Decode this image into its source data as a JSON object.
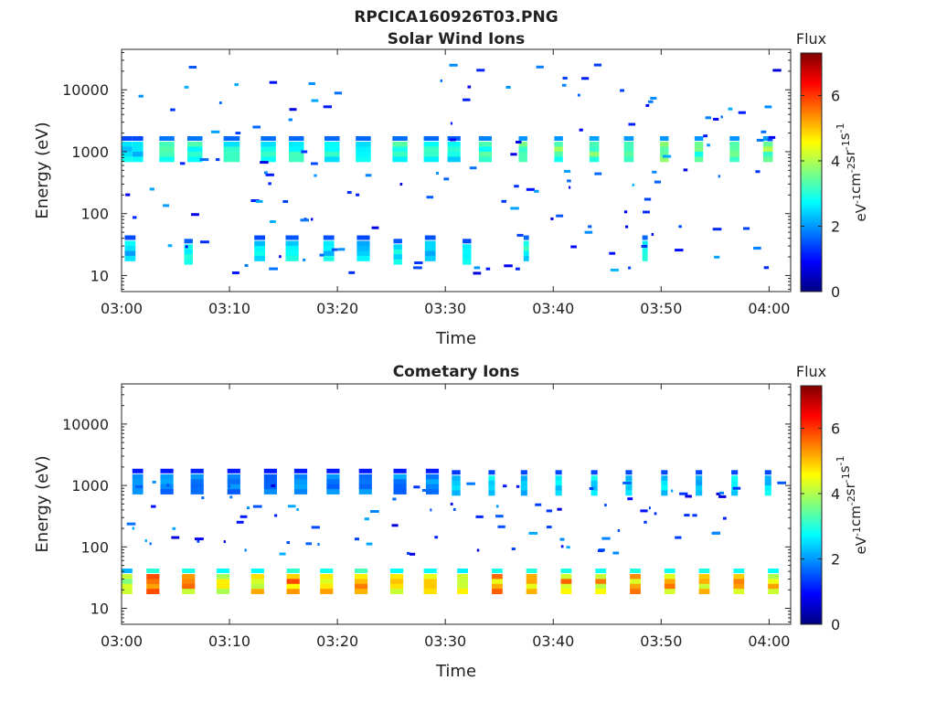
{
  "figure_title": "RPCICA160926T03.PNG",
  "colors": {
    "colormap": [
      "#00007f",
      "#0000ff",
      "#007fff",
      "#00ffff",
      "#7fff7f",
      "#ffff00",
      "#ff7f00",
      "#ff0000",
      "#7f0000"
    ]
  },
  "chart_data": [
    {
      "type": "heatmap",
      "title": "Solar Wind Ions",
      "xlabel": "Time",
      "ylabel": "Energy (eV)",
      "y_scale": "log",
      "xlim": [
        "03:00",
        "04:02"
      ],
      "ylim": [
        5.5,
        45000
      ],
      "xticks": [
        "03:00",
        "03:10",
        "03:20",
        "03:30",
        "03:40",
        "03:50",
        "04:00"
      ],
      "yticks": [
        {
          "value": 10,
          "label": "10"
        },
        {
          "value": 100,
          "label": "100"
        },
        {
          "value": 1000,
          "label": "1000"
        },
        {
          "value": 10000,
          "label": "10000"
        }
      ],
      "colorbar": {
        "title": "Flux",
        "label_parts": [
          "eV",
          "-1",
          "cm",
          "-2",
          "sr",
          "-1",
          "s",
          "-1"
        ],
        "range": [
          0,
          7.3
        ],
        "ticks": [
          {
            "value": 0,
            "label": "0"
          },
          {
            "value": 2,
            "label": "2"
          },
          {
            "value": 4,
            "label": "4"
          },
          {
            "value": 6,
            "label": "6"
          }
        ]
      },
      "cells": [
        {
          "t": 0.5,
          "e": 1000,
          "dt": 1.0,
          "f": 2.6
        },
        {
          "t": 1.5,
          "e": 1000,
          "dt": 1.0,
          "f": 2.6
        },
        {
          "t": 4.2,
          "e": 1000,
          "dt": 1.4,
          "f": 3.2
        },
        {
          "t": 6.8,
          "e": 1000,
          "dt": 1.4,
          "f": 3.2
        },
        {
          "t": 10.2,
          "e": 1000,
          "dt": 1.5,
          "f": 3.0
        },
        {
          "t": 13.6,
          "e": 1000,
          "dt": 1.4,
          "f": 3.1
        },
        {
          "t": 16.2,
          "e": 1000,
          "dt": 1.4,
          "f": 3.0
        },
        {
          "t": 19.5,
          "e": 1000,
          "dt": 1.4,
          "f": 3.0
        },
        {
          "t": 22.4,
          "e": 1000,
          "dt": 1.4,
          "f": 3.0
        },
        {
          "t": 25.8,
          "e": 1000,
          "dt": 1.4,
          "f": 3.1
        },
        {
          "t": 28.7,
          "e": 1000,
          "dt": 1.4,
          "f": 3.0
        },
        {
          "t": 30.8,
          "e": 1000,
          "dt": 1.2,
          "f": 2.9
        },
        {
          "t": 33.7,
          "e": 1000,
          "dt": 1.2,
          "f": 3.4
        },
        {
          "t": 37.2,
          "e": 1000,
          "dt": 0.8,
          "f": 3.6
        },
        {
          "t": 40.5,
          "e": 1000,
          "dt": 0.8,
          "f": 3.6
        },
        {
          "t": 43.8,
          "e": 1000,
          "dt": 0.9,
          "f": 3.8
        },
        {
          "t": 47.0,
          "e": 1000,
          "dt": 0.9,
          "f": 3.7
        },
        {
          "t": 50.3,
          "e": 1000,
          "dt": 0.8,
          "f": 3.6
        },
        {
          "t": 53.5,
          "e": 1000,
          "dt": 0.8,
          "f": 3.6
        },
        {
          "t": 56.8,
          "e": 1000,
          "dt": 0.9,
          "f": 3.6
        },
        {
          "t": 59.9,
          "e": 1000,
          "dt": 0.9,
          "f": 3.7
        },
        {
          "t": 0.8,
          "e": 25,
          "dt": 1.0,
          "f": 2.6
        },
        {
          "t": 6.2,
          "e": 22,
          "dt": 0.8,
          "f": 2.9
        },
        {
          "t": 12.8,
          "e": 25,
          "dt": 1.0,
          "f": 2.6
        },
        {
          "t": 15.8,
          "e": 25,
          "dt": 1.2,
          "f": 2.8
        },
        {
          "t": 19.2,
          "e": 25,
          "dt": 1.0,
          "f": 2.7
        },
        {
          "t": 22.4,
          "e": 25,
          "dt": 1.2,
          "f": 2.6
        },
        {
          "t": 25.6,
          "e": 22,
          "dt": 0.8,
          "f": 2.8
        },
        {
          "t": 28.6,
          "e": 25,
          "dt": 1.0,
          "f": 2.7
        },
        {
          "t": 32.0,
          "e": 22,
          "dt": 0.8,
          "f": 2.6
        },
        {
          "t": 37.5,
          "e": 25,
          "dt": 0.5,
          "f": 3.0
        },
        {
          "t": 48.5,
          "e": 25,
          "dt": 0.5,
          "f": 3.0
        }
      ],
      "notes": "Dense bands are drawn as rectangles; scattered low-flux points are decoration generated in the drawing script."
    },
    {
      "type": "heatmap",
      "title": "Cometary Ions",
      "xlabel": "Time",
      "ylabel": "Energy (eV)",
      "y_scale": "log",
      "xlim": [
        "03:00",
        "04:02"
      ],
      "ylim": [
        5.5,
        45000
      ],
      "xticks": [
        "03:00",
        "03:10",
        "03:20",
        "03:30",
        "03:40",
        "03:50",
        "04:00"
      ],
      "yticks": [
        {
          "value": 10,
          "label": "10"
        },
        {
          "value": 100,
          "label": "100"
        },
        {
          "value": 1000,
          "label": "1000"
        },
        {
          "value": 10000,
          "label": "10000"
        }
      ],
      "colorbar": {
        "title": "Flux",
        "label_parts": [
          "eV",
          "-1",
          "cm",
          "-2",
          "sr",
          "-1",
          "s",
          "-1"
        ],
        "range": [
          0,
          7.3
        ],
        "ticks": [
          {
            "value": 0,
            "label": "0"
          },
          {
            "value": 2,
            "label": "2"
          },
          {
            "value": 4,
            "label": "4"
          },
          {
            "value": 6,
            "label": "6"
          }
        ]
      },
      "cells": [
        {
          "t": 0.5,
          "e": 25,
          "dt": 1.0,
          "f": 4.0
        },
        {
          "t": 2.9,
          "e": 25,
          "dt": 1.2,
          "f": 5.5
        },
        {
          "t": 6.2,
          "e": 25,
          "dt": 1.2,
          "f": 5.3
        },
        {
          "t": 9.4,
          "e": 25,
          "dt": 1.2,
          "f": 5.0
        },
        {
          "t": 12.6,
          "e": 25,
          "dt": 1.2,
          "f": 5.0
        },
        {
          "t": 15.9,
          "e": 25,
          "dt": 1.2,
          "f": 5.6
        },
        {
          "t": 19.0,
          "e": 25,
          "dt": 1.2,
          "f": 5.2
        },
        {
          "t": 22.2,
          "e": 25,
          "dt": 1.2,
          "f": 5.9
        },
        {
          "t": 25.5,
          "e": 25,
          "dt": 1.2,
          "f": 5.0
        },
        {
          "t": 28.6,
          "e": 25,
          "dt": 1.2,
          "f": 5.1
        },
        {
          "t": 31.6,
          "e": 25,
          "dt": 1.0,
          "f": 4.8
        },
        {
          "t": 34.8,
          "e": 25,
          "dt": 1.0,
          "f": 5.3
        },
        {
          "t": 38.0,
          "e": 25,
          "dt": 1.0,
          "f": 5.4
        },
        {
          "t": 41.2,
          "e": 25,
          "dt": 1.0,
          "f": 5.3
        },
        {
          "t": 44.4,
          "e": 25,
          "dt": 1.0,
          "f": 5.2
        },
        {
          "t": 47.6,
          "e": 25,
          "dt": 1.0,
          "f": 5.4
        },
        {
          "t": 50.8,
          "e": 25,
          "dt": 1.0,
          "f": 5.2
        },
        {
          "t": 54.0,
          "e": 25,
          "dt": 1.0,
          "f": 5.3
        },
        {
          "t": 57.2,
          "e": 25,
          "dt": 1.0,
          "f": 5.2
        },
        {
          "t": 60.4,
          "e": 25,
          "dt": 1.0,
          "f": 5.0
        },
        {
          "t": 1.5,
          "e": 1050,
          "dt": 1.0,
          "f": 2.0
        },
        {
          "t": 4.2,
          "e": 1050,
          "dt": 1.2,
          "f": 2.0
        },
        {
          "t": 7.0,
          "e": 1050,
          "dt": 1.2,
          "f": 2.1
        },
        {
          "t": 10.4,
          "e": 1050,
          "dt": 1.2,
          "f": 2.0
        },
        {
          "t": 13.8,
          "e": 1050,
          "dt": 1.2,
          "f": 2.0
        },
        {
          "t": 16.6,
          "e": 1050,
          "dt": 1.2,
          "f": 2.0
        },
        {
          "t": 19.6,
          "e": 1050,
          "dt": 1.2,
          "f": 2.0
        },
        {
          "t": 22.6,
          "e": 1050,
          "dt": 1.2,
          "f": 2.0
        },
        {
          "t": 25.8,
          "e": 1050,
          "dt": 1.2,
          "f": 2.0
        },
        {
          "t": 28.8,
          "e": 1050,
          "dt": 1.2,
          "f": 2.0
        },
        {
          "t": 31.0,
          "e": 1000,
          "dt": 0.8,
          "f": 2.4
        },
        {
          "t": 34.3,
          "e": 1000,
          "dt": 0.6,
          "f": 2.6
        },
        {
          "t": 37.3,
          "e": 1000,
          "dt": 0.6,
          "f": 2.6
        },
        {
          "t": 40.5,
          "e": 1000,
          "dt": 0.6,
          "f": 2.6
        },
        {
          "t": 43.8,
          "e": 1000,
          "dt": 0.6,
          "f": 2.6
        },
        {
          "t": 47.0,
          "e": 1000,
          "dt": 0.6,
          "f": 2.6
        },
        {
          "t": 50.3,
          "e": 1000,
          "dt": 0.6,
          "f": 2.6
        },
        {
          "t": 53.5,
          "e": 1000,
          "dt": 0.6,
          "f": 2.6
        },
        {
          "t": 56.8,
          "e": 1000,
          "dt": 0.6,
          "f": 2.6
        },
        {
          "t": 59.9,
          "e": 1000,
          "dt": 0.6,
          "f": 2.6
        }
      ]
    }
  ]
}
